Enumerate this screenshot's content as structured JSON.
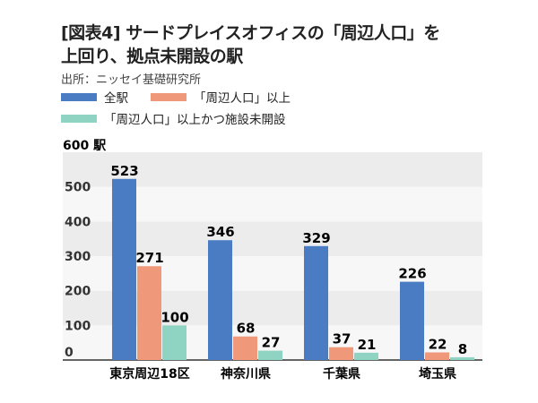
{
  "chart_data": {
    "type": "bar",
    "title": "[図表4] サードプレイスオフィスの「周辺人口」を上回り、拠点未開設の駅",
    "title_line1": "[図表4] サードプレイスオフィスの「周辺人口」を",
    "title_line2": "上回り、拠点未開設の駅",
    "source": "出所：ニッセイ基礎研究所",
    "ylabel": "駅",
    "ylim": [
      0,
      600
    ],
    "yticks": [
      0,
      100,
      200,
      300,
      400,
      500,
      600
    ],
    "categories": [
      "東京周辺18区",
      "神奈川県",
      "千葉県",
      "埼玉県"
    ],
    "series": [
      {
        "name": "全駅",
        "color": "#4a7cc4",
        "values": [
          523,
          346,
          329,
          226
        ]
      },
      {
        "name": "「周辺人口」以上",
        "color": "#f0997a",
        "values": [
          271,
          68,
          37,
          22
        ]
      },
      {
        "name": "「周辺人口」以上かつ施設未開設",
        "color": "#8fd3c3",
        "values": [
          100,
          27,
          21,
          8
        ]
      }
    ],
    "legend_position": "top-left",
    "grid": "alternating-bands"
  }
}
